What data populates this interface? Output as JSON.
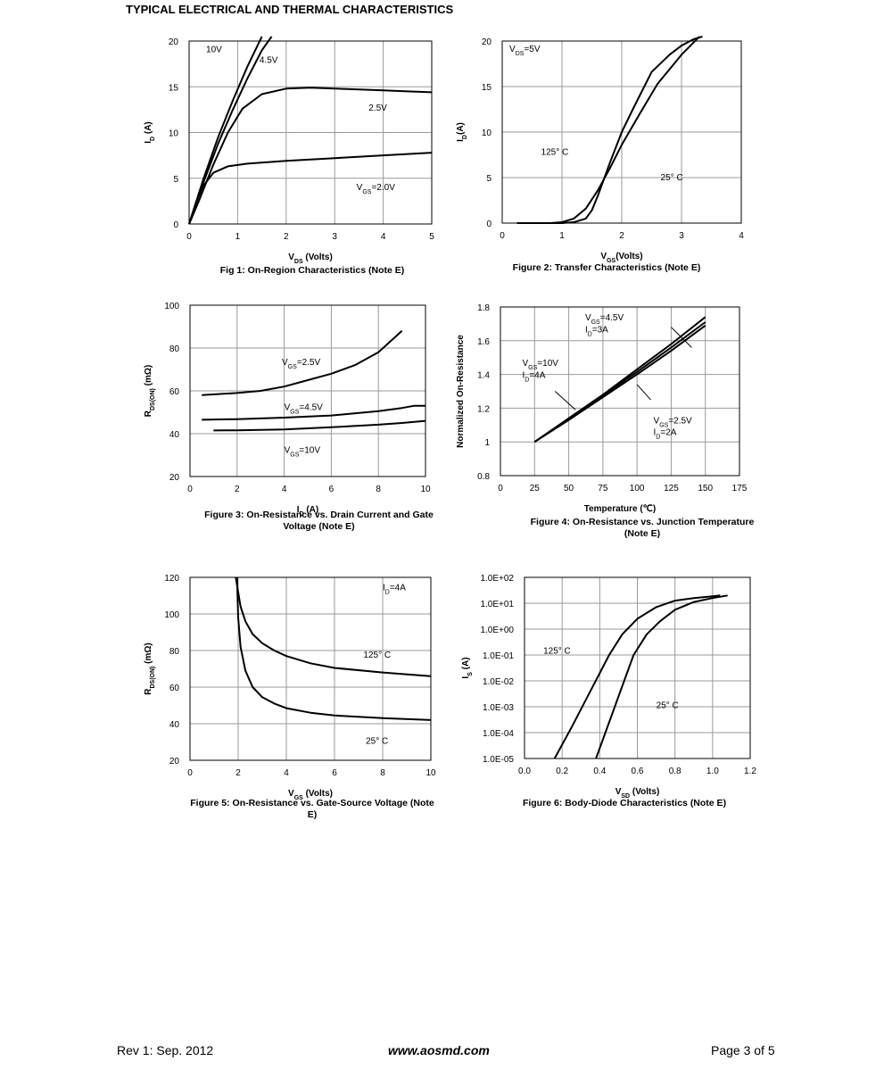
{
  "header": {
    "title": "TYPICAL ELECTRICAL AND THERMAL CHARACTERISTICS"
  },
  "footer": {
    "rev": "Rev 1: Sep. 2012",
    "url": "www.aosmd.com",
    "page": "Page 3 of 5"
  },
  "chart_data": [
    {
      "id": "fig1",
      "type": "line",
      "title": "Fig 1: On-Region Characteristics (Note E)",
      "xlabel": {
        "main": "V",
        "sub": "DS",
        "rest": " (Volts)"
      },
      "ylabel": {
        "main": "I",
        "sub": "D",
        "rest": " (A)"
      },
      "xlim": [
        0,
        5
      ],
      "ylim": [
        0,
        20
      ],
      "xticks": [
        "0",
        "1",
        "2",
        "3",
        "4",
        "5"
      ],
      "yticks": [
        "0",
        "5",
        "10",
        "15",
        "20"
      ],
      "grid": true,
      "yscale": "linear",
      "series": [
        {
          "label": "10V",
          "x": [
            0,
            0.3,
            0.6,
            0.9,
            1.2,
            1.5
          ],
          "y": [
            0,
            5,
            9.5,
            13.5,
            17.2,
            20.5
          ]
        },
        {
          "label": "4.5V",
          "x": [
            0,
            0.3,
            0.6,
            0.9,
            1.2,
            1.5,
            1.7
          ],
          "y": [
            0,
            4.6,
            8.8,
            12.5,
            15.9,
            19,
            20.5
          ]
        },
        {
          "label": "2.5V",
          "x": [
            0,
            0.2,
            0.5,
            0.8,
            1.1,
            1.5,
            2.0,
            2.5,
            3.0,
            3.5,
            4.0,
            4.5,
            5.0
          ],
          "y": [
            0,
            2.5,
            6.5,
            10,
            12.6,
            14.2,
            14.8,
            14.9,
            14.8,
            14.7,
            14.6,
            14.5,
            14.4
          ]
        },
        {
          "label": "VGS=2.0V",
          "x": [
            0,
            0.15,
            0.3,
            0.5,
            0.8,
            1.2,
            2,
            3,
            4,
            5
          ],
          "y": [
            0,
            2.5,
            4.2,
            5.6,
            6.3,
            6.6,
            6.9,
            7.2,
            7.5,
            7.8
          ]
        }
      ],
      "annotations": [
        {
          "text": "10V",
          "x": 0.35,
          "y": 18.8
        },
        {
          "text": "4.5V",
          "x": 1.45,
          "y": 17.6
        },
        {
          "text": "2.5V",
          "x": 3.7,
          "y": 12.4
        },
        {
          "main": "V",
          "sub": "GS",
          "rest": "=2.0V",
          "x": 3.45,
          "y": 3.7
        }
      ]
    },
    {
      "id": "fig2",
      "type": "line",
      "title": "Figure 2: Transfer Characteristics (Note E)",
      "xlabel": {
        "main": "V",
        "sub": "GS",
        "rest": "(Volts)"
      },
      "ylabel": {
        "main": "I",
        "sub": "D",
        "rest": "(A)"
      },
      "xlim": [
        0,
        4
      ],
      "ylim": [
        0,
        20
      ],
      "xticks": [
        "0",
        "1",
        "2",
        "3",
        "4"
      ],
      "yticks": [
        "0",
        "5",
        "10",
        "15",
        "20"
      ],
      "grid": true,
      "yscale": "linear",
      "series": [
        {
          "label": "125° C",
          "x": [
            0.25,
            0.8,
            1.0,
            1.2,
            1.4,
            1.6,
            1.8,
            2.0,
            2.3,
            2.6,
            3.0,
            3.3
          ],
          "y": [
            0,
            0,
            0.1,
            0.5,
            1.6,
            3.6,
            6.0,
            8.6,
            12.0,
            15.3,
            18.5,
            20.5
          ]
        },
        {
          "label": "25° C",
          "x": [
            0.25,
            1.0,
            1.2,
            1.4,
            1.5,
            1.6,
            1.8,
            2.0,
            2.2,
            2.5,
            2.8,
            3.0,
            3.2,
            3.35
          ],
          "y": [
            0,
            0,
            0.1,
            0.5,
            1.4,
            3.0,
            6.6,
            10.0,
            12.7,
            16.6,
            18.5,
            19.5,
            20.2,
            20.5
          ]
        }
      ],
      "annotations": [
        {
          "main": "V",
          "sub": "DS",
          "rest": "=5V",
          "x": 0.12,
          "y": 18.8
        },
        {
          "text": "125° C",
          "x": 0.65,
          "y": 7.5
        },
        {
          "text": "25° C",
          "x": 2.65,
          "y": 4.7
        }
      ]
    },
    {
      "id": "fig3",
      "type": "line",
      "title": "Figure 3: On-Resistance vs. Drain Current and Gate Voltage (Note E)",
      "xlabel": {
        "main": "I",
        "sub": "D",
        "rest": " (A)"
      },
      "ylabel": {
        "main": "R",
        "sub": "DS(ON)",
        "rest": " (mΩ)"
      },
      "xlim": [
        0,
        10
      ],
      "ylim": [
        20,
        100
      ],
      "xticks": [
        "0",
        "2",
        "4",
        "6",
        "8",
        "10"
      ],
      "yticks": [
        "20",
        "40",
        "60",
        "80",
        "100"
      ],
      "grid": true,
      "yscale": "linear",
      "series": [
        {
          "label": "VGS=2.5V",
          "x": [
            0.5,
            2,
            3,
            4,
            5,
            6,
            7,
            8,
            8.5,
            9
          ],
          "y": [
            58,
            59,
            60,
            62,
            65,
            68,
            72,
            78,
            83,
            88
          ]
        },
        {
          "label": "VGS=4.5V",
          "x": [
            0.5,
            2,
            4,
            6,
            8,
            9,
            9.5,
            10
          ],
          "y": [
            46.5,
            46.8,
            47.5,
            48.5,
            50.5,
            52,
            53,
            53
          ]
        },
        {
          "label": "VGS=10V",
          "x": [
            1,
            2,
            4,
            6,
            8,
            9,
            10
          ],
          "y": [
            41.5,
            41.6,
            42,
            43,
            44.2,
            45,
            46
          ]
        }
      ],
      "annotations": [
        {
          "main": "V",
          "sub": "GS",
          "rest": "=2.5V",
          "x": 3.9,
          "y": 72
        },
        {
          "main": "V",
          "sub": "GS",
          "rest": "=4.5V",
          "x": 4.0,
          "y": 51
        },
        {
          "main": "V",
          "sub": "GS",
          "rest": "=10V",
          "x": 4.0,
          "y": 31
        }
      ]
    },
    {
      "id": "fig4",
      "type": "line",
      "title": "Figure 4: On-Resistance vs. Junction Temperature (Note E)",
      "xlabel": {
        "main": "Temperature (℃)",
        "sub": "",
        "rest": ""
      },
      "ylabel": {
        "main": "Normalized On-Resistance",
        "sub": "",
        "rest": ""
      },
      "xlim": [
        0,
        175
      ],
      "ylim": [
        0.8,
        1.8
      ],
      "xticks": [
        "0",
        "25",
        "50",
        "75",
        "100",
        "125",
        "150",
        "175"
      ],
      "yticks": [
        "0.8",
        "1",
        "1.2",
        "1.4",
        "1.6",
        "1.8"
      ],
      "grid": true,
      "yscale": "linear",
      "series": [
        {
          "label": "VGS=4.5V ID=3A",
          "x": [
            25,
            50,
            75,
            100,
            125,
            150
          ],
          "y": [
            1.0,
            1.14,
            1.28,
            1.43,
            1.58,
            1.74
          ]
        },
        {
          "label": "VGS=10V ID=4A",
          "x": [
            25,
            50,
            75,
            100,
            125,
            150
          ],
          "y": [
            1.0,
            1.135,
            1.275,
            1.415,
            1.56,
            1.71
          ]
        },
        {
          "label": "VGS=2.5V ID=2A",
          "x": [
            25,
            50,
            75,
            100,
            125,
            150
          ],
          "y": [
            1.0,
            1.13,
            1.265,
            1.4,
            1.54,
            1.69
          ]
        }
      ],
      "annotations": [
        {
          "main": "V",
          "sub": "GS",
          "rest": "=4.5V",
          "x": 62,
          "y": 1.72
        },
        {
          "main": "I",
          "sub": "D",
          "rest": "=3A",
          "x": 62,
          "y": 1.65
        },
        {
          "main": "V",
          "sub": "GS",
          "rest": "=10V",
          "x": 16,
          "y": 1.45
        },
        {
          "main": "I",
          "sub": "D",
          "rest": "=4A",
          "x": 16,
          "y": 1.38
        },
        {
          "main": "V",
          "sub": "GS",
          "rest": "=2.5V",
          "x": 112,
          "y": 1.11
        },
        {
          "main": "I",
          "sub": "D",
          "rest": "=2A",
          "x": 112,
          "y": 1.04
        }
      ]
    },
    {
      "id": "fig5",
      "type": "line",
      "title": "Figure 5: On-Resistance vs. Gate-Source Voltage (Note E)",
      "xlabel": {
        "main": "V",
        "sub": "GS",
        "rest": " (Volts)"
      },
      "ylabel": {
        "main": "R",
        "sub": "DS(ON)",
        "rest": " (mΩ)"
      },
      "xlim": [
        0,
        10
      ],
      "ylim": [
        20,
        120
      ],
      "xticks": [
        "0",
        "2",
        "4",
        "6",
        "8",
        "10"
      ],
      "yticks": [
        "20",
        "40",
        "60",
        "80",
        "100",
        "120"
      ],
      "grid": true,
      "yscale": "linear",
      "series": [
        {
          "label": "125° C",
          "x": [
            1.9,
            2.0,
            2.1,
            2.3,
            2.6,
            3.0,
            3.5,
            4.0,
            5.0,
            6.0,
            8.0,
            10.0
          ],
          "y": [
            120,
            112,
            104,
            96,
            89,
            84,
            80,
            77,
            73,
            70.5,
            68,
            66
          ]
        },
        {
          "label": "25° C",
          "x": [
            1.95,
            2.0,
            2.1,
            2.3,
            2.6,
            3.0,
            3.5,
            4.0,
            5.0,
            6.0,
            8.0,
            10.0
          ],
          "y": [
            120,
            98,
            82,
            69,
            60,
            54.5,
            51,
            48.5,
            46,
            44.5,
            43,
            42
          ]
        }
      ],
      "annotations": [
        {
          "main": "I",
          "sub": "D",
          "rest": "=4A",
          "x": 8.0,
          "y": 113
        },
        {
          "text": "125° C",
          "x": 7.2,
          "y": 76
        },
        {
          "text": "25° C",
          "x": 7.3,
          "y": 29
        }
      ]
    },
    {
      "id": "fig6",
      "type": "line",
      "title": "Figure 6: Body-Diode Characteristics (Note E)",
      "xlabel": {
        "main": "V",
        "sub": "SD",
        "rest": " (Volts)"
      },
      "ylabel": {
        "main": "I",
        "sub": "S",
        "rest": " (A)"
      },
      "xlim": [
        0,
        1.2
      ],
      "ylim": [
        -5,
        2
      ],
      "xticks": [
        "0.0",
        "0.2",
        "0.4",
        "0.6",
        "0.8",
        "1.0",
        "1.2"
      ],
      "yticks": [
        "1.0E-05",
        "1.0E-04",
        "1.0E-03",
        "1.0E-02",
        "1.0E-01",
        "1.0E+00",
        "1.0E+01",
        "1.0E+02"
      ],
      "grid": true,
      "yscale": "log",
      "series": [
        {
          "label": "125° C",
          "x": [
            0.16,
            0.25,
            0.35,
            0.45,
            0.52,
            0.6,
            0.7,
            0.8,
            0.9,
            1.0,
            1.04
          ],
          "y": [
            -5,
            -3.8,
            -2.4,
            -1.0,
            -0.2,
            0.4,
            0.85,
            1.1,
            1.2,
            1.27,
            1.3
          ]
        },
        {
          "label": "25° C",
          "x": [
            0.38,
            0.45,
            0.52,
            0.58,
            0.65,
            0.72,
            0.8,
            0.9,
            1.0,
            1.08
          ],
          "y": [
            -5,
            -3.6,
            -2.2,
            -1.0,
            -0.2,
            0.3,
            0.75,
            1.05,
            1.2,
            1.3
          ]
        }
      ],
      "annotations": [
        {
          "text": "125° C",
          "x": 0.1,
          "y": -0.95
        },
        {
          "text": "25° C",
          "x": 0.7,
          "y": -3.05
        }
      ]
    }
  ]
}
